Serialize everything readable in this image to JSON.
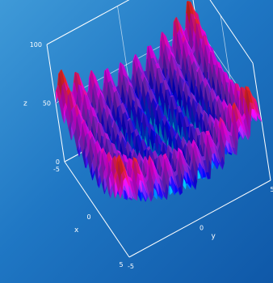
{
  "chart_data": {
    "type": "surface-3d",
    "title": "",
    "function": "x^2 + y^2 + 10*(2 - cos(2*pi*x) - cos(2*pi*y))",
    "x_range": [
      -5,
      5
    ],
    "y_range": [
      -5,
      5
    ],
    "z_range": [
      0,
      100
    ],
    "x_label": "x",
    "y_label": "y",
    "z_label": "z",
    "x_ticks": [
      "-5",
      "0",
      "5"
    ],
    "y_ticks": [
      "-5",
      "0",
      "5"
    ],
    "z_ticks": [
      "0",
      "50",
      "100"
    ],
    "colormap": [
      "#ff2a2a",
      "#ff00ff",
      "#8a2be2",
      "#0000ff",
      "#00e5ff",
      "#00ff66"
    ],
    "grid": true
  },
  "colors": {
    "background_top": "#3f9ad8",
    "background_bottom": "#0f58a8",
    "axis": "#ffffff"
  }
}
